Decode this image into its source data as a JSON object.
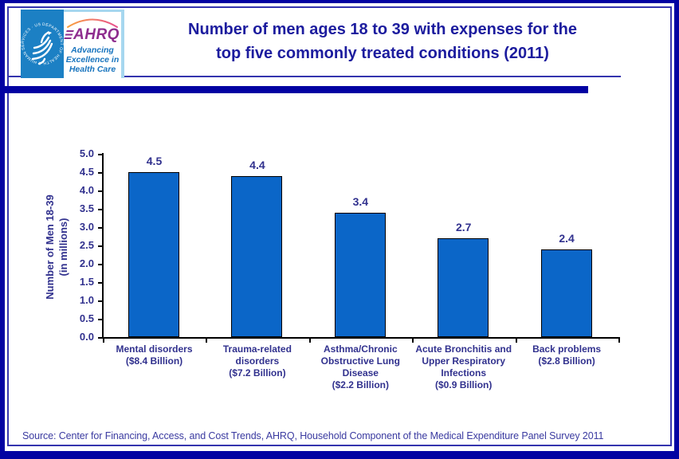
{
  "header": {
    "title": "Number of men ages 18 to 39 with expenses for the\ntop five commonly treated conditions (2011)",
    "logo": {
      "hhs_seal_text": "DEPARTMENT OF HEALTH & HUMAN SERVICES · USA",
      "ahrq_acronym": "AHRQ",
      "ahrq_tagline": "Advancing\nExcellence in\nHealth Care"
    }
  },
  "chart_data": {
    "type": "bar",
    "title": "Number of men ages 18 to 39 with expenses for the top five commonly treated conditions (2011)",
    "xlabel": "",
    "ylabel": "Number of Men 18-39\n(in millions)",
    "ylim": [
      0,
      5.0
    ],
    "ytick_step": 0.5,
    "yticks": [
      "5.0",
      "4.5",
      "4.0",
      "3.5",
      "3.0",
      "2.5",
      "2.0",
      "1.5",
      "1.0",
      "0.5",
      "0.0"
    ],
    "grid": false,
    "legend": false,
    "categories": [
      "Mental disorders\n($8.4 Billion)",
      "Trauma-related\ndisorders\n($7.2 Billion)",
      "Asthma/Chronic\nObstructive Lung\nDisease\n($2.2 Billion)",
      "Acute Bronchitis and\nUpper Respiratory\nInfections\n($0.9 Billion)",
      "Back problems\n($2.8 Billion)"
    ],
    "values": [
      4.5,
      4.4,
      3.4,
      2.7,
      2.4
    ],
    "value_labels": [
      "4.5",
      "4.4",
      "3.4",
      "2.7",
      "2.4"
    ]
  },
  "footer": {
    "source": "Source: Center for Financing, Access, and Cost Trends, AHRQ, Household Component of the Medical Expenditure Panel Survey 2011"
  },
  "colors": {
    "frame_navy": "#0202a2",
    "title_navy": "#1c1c9e",
    "label_indigo": "#31318e",
    "bar_blue": "#0b66c8",
    "seal_blue": "#1c80c4",
    "ahrq_purple": "#8e2d8e",
    "tagline_blue": "#1874be"
  }
}
